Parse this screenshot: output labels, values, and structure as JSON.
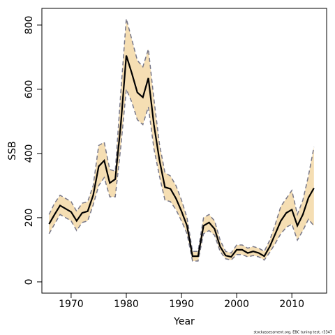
{
  "chart_data": {
    "type": "line",
    "x_label": "Year",
    "y_label": "SSB",
    "footnote": "stockassessment.org, EBC tuning test, r3347",
    "x": [
      1966,
      1967,
      1968,
      1969,
      1970,
      1971,
      1972,
      1973,
      1974,
      1975,
      1976,
      1977,
      1978,
      1979,
      1980,
      1981,
      1982,
      1983,
      1984,
      1985,
      1986,
      1987,
      1988,
      1989,
      1990,
      1991,
      1992,
      1993,
      1994,
      1995,
      1996,
      1997,
      1998,
      1999,
      2000,
      2001,
      2002,
      2003,
      2004,
      2005,
      2006,
      2007,
      2008,
      2009,
      2010,
      2011,
      2012,
      2013,
      2014
    ],
    "values": [
      180,
      210,
      238,
      228,
      218,
      190,
      215,
      220,
      270,
      360,
      378,
      308,
      320,
      490,
      705,
      650,
      590,
      575,
      635,
      490,
      380,
      295,
      290,
      260,
      220,
      175,
      80,
      80,
      175,
      185,
      165,
      110,
      82,
      78,
      100,
      100,
      90,
      95,
      90,
      80,
      110,
      150,
      190,
      215,
      225,
      175,
      210,
      262,
      292
    ],
    "upper": [
      210,
      245,
      270,
      260,
      250,
      220,
      245,
      250,
      300,
      425,
      435,
      350,
      345,
      590,
      820,
      755,
      690,
      670,
      725,
      570,
      430,
      340,
      330,
      300,
      255,
      200,
      95,
      95,
      200,
      210,
      190,
      130,
      95,
      90,
      115,
      115,
      105,
      110,
      105,
      95,
      130,
      180,
      235,
      260,
      285,
      210,
      255,
      330,
      420
    ],
    "lower": [
      150,
      180,
      210,
      200,
      190,
      160,
      185,
      190,
      240,
      300,
      325,
      265,
      265,
      420,
      600,
      560,
      505,
      490,
      545,
      415,
      330,
      255,
      250,
      225,
      190,
      150,
      65,
      65,
      150,
      160,
      145,
      95,
      72,
      68,
      85,
      85,
      78,
      82,
      78,
      68,
      92,
      120,
      150,
      170,
      180,
      130,
      160,
      195,
      175
    ],
    "color": "#000000",
    "band_color": "#f5deb3",
    "dash_color": "#777788",
    "xlim": [
      1964.7,
      2016.3
    ],
    "xticks": [
      1970,
      1980,
      1990,
      2000,
      2010
    ],
    "ylim": [
      -35,
      852
    ],
    "yticks": [
      0,
      200,
      400,
      600,
      800
    ]
  }
}
